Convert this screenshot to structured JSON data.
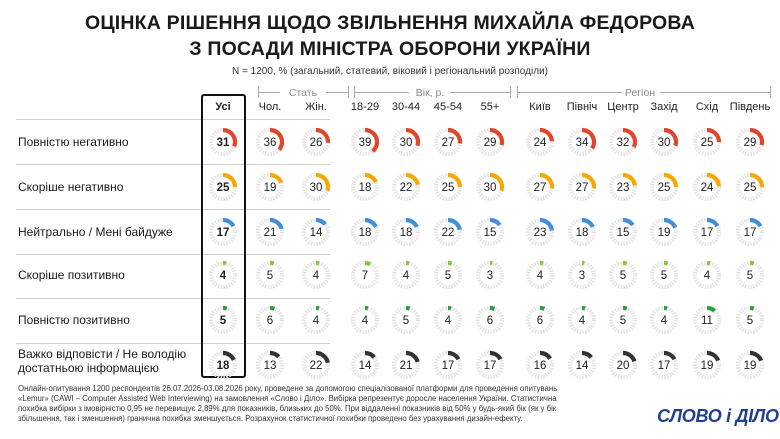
{
  "title_line1": "ОЦІНКА РІШЕННЯ ЩОДО ЗВІЛЬНЕННЯ МИХАЙЛА ФЕДОРОВА",
  "title_line2": "З ПОСАДИ МІНІСТРА ОБОРОНИ УКРАЇНИ",
  "subtitle": "N = 1200, % (загальний, статевий, віковий і регіональний розподіли)",
  "groups": {
    "gender": "Стать",
    "age": "Вік, р.",
    "region": "Регіон"
  },
  "footer": "Онлайн-опитування 1200 респондентів 26.07.2026-03.08.2026 року, проведене за допомогою спеціалізованої платформи для проведення опитувань «Lemur» (CAWI – Computer Assisted Web Interviewing) на замовлення «Слово і Діло». Вибірка репрезентує доросле населення України. Статистична похибка вибірки з імовірністю 0,95 не перевищує 2,89% для показників, близьких до 50%. При віддаленні показників від 50% у будь-який бік (як у бік збільшення, так і зменшення) гранична похибка зменшується. Розрахунок статистичної похибки проведено без урахування дизайн-ефекту.",
  "logo": "СЛОВО і ДІЛО",
  "chart_data": {
    "type": "table",
    "columns": [
      "Усі",
      "Чол.",
      "Жін.",
      "18-29",
      "30-44",
      "45-54",
      "55+",
      "Київ",
      "Північ",
      "Центр",
      "Захід",
      "Схід",
      "Південь"
    ],
    "rows": [
      {
        "label": "Повністю негативно",
        "color": "#e0462a",
        "values": [
          31,
          36,
          26,
          39,
          30,
          27,
          29,
          24,
          34,
          32,
          30,
          25,
          29
        ]
      },
      {
        "label": "Скоріше негативно",
        "color": "#f5a800",
        "values": [
          25,
          19,
          30,
          18,
          22,
          25,
          30,
          27,
          27,
          23,
          25,
          24,
          25
        ]
      },
      {
        "label": "Нейтрально / Мені байдуже",
        "color": "#3f8fde",
        "values": [
          17,
          21,
          14,
          18,
          18,
          22,
          15,
          23,
          18,
          15,
          19,
          17,
          17
        ]
      },
      {
        "label": "Скоріше позитивно",
        "color": "#8cc43c",
        "values": [
          4,
          5,
          4,
          7,
          4,
          5,
          3,
          4,
          3,
          5,
          5,
          4,
          5
        ]
      },
      {
        "label": "Повністю позитивно",
        "color": "#2f9e3f",
        "values": [
          5,
          6,
          4,
          4,
          5,
          4,
          6,
          6,
          4,
          5,
          4,
          11,
          5
        ]
      },
      {
        "label": "Важко відповісти / Не володію достатньою інформацією",
        "color": "#333333",
        "values": [
          18,
          13,
          22,
          14,
          21,
          17,
          17,
          16,
          14,
          20,
          17,
          19,
          19
        ]
      }
    ]
  }
}
